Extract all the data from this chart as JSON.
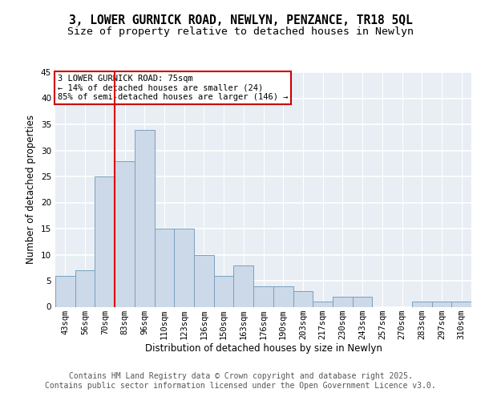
{
  "title": "3, LOWER GURNICK ROAD, NEWLYN, PENZANCE, TR18 5QL",
  "subtitle": "Size of property relative to detached houses in Newlyn",
  "xlabel": "Distribution of detached houses by size in Newlyn",
  "ylabel": "Number of detached properties",
  "bins": [
    "43sqm",
    "56sqm",
    "70sqm",
    "83sqm",
    "96sqm",
    "110sqm",
    "123sqm",
    "136sqm",
    "150sqm",
    "163sqm",
    "176sqm",
    "190sqm",
    "203sqm",
    "217sqm",
    "230sqm",
    "243sqm",
    "257sqm",
    "270sqm",
    "283sqm",
    "297sqm",
    "310sqm"
  ],
  "values": [
    6,
    7,
    25,
    28,
    34,
    15,
    15,
    10,
    6,
    8,
    4,
    4,
    3,
    1,
    2,
    2,
    0,
    0,
    1,
    1,
    1
  ],
  "bar_color": "#ccd9e8",
  "bar_edge_color": "#7aa0be",
  "vline_color": "#dd0000",
  "vline_x_index": 2,
  "annotation_text": "3 LOWER GURNICK ROAD: 75sqm\n← 14% of detached houses are smaller (24)\n85% of semi-detached houses are larger (146) →",
  "annotation_box_facecolor": "#ffffff",
  "annotation_box_edgecolor": "#cc0000",
  "footer_line1": "Contains HM Land Registry data © Crown copyright and database right 2025.",
  "footer_line2": "Contains public sector information licensed under the Open Government Licence v3.0.",
  "ylim": [
    0,
    45
  ],
  "yticks": [
    0,
    5,
    10,
    15,
    20,
    25,
    30,
    35,
    40,
    45
  ],
  "bg_color": "#ffffff",
  "plot_bg_color": "#e8eef4",
  "title_fontsize": 10.5,
  "subtitle_fontsize": 9.5,
  "axis_label_fontsize": 8.5,
  "tick_fontsize": 7.5,
  "annot_fontsize": 7.5,
  "footer_fontsize": 7.0
}
